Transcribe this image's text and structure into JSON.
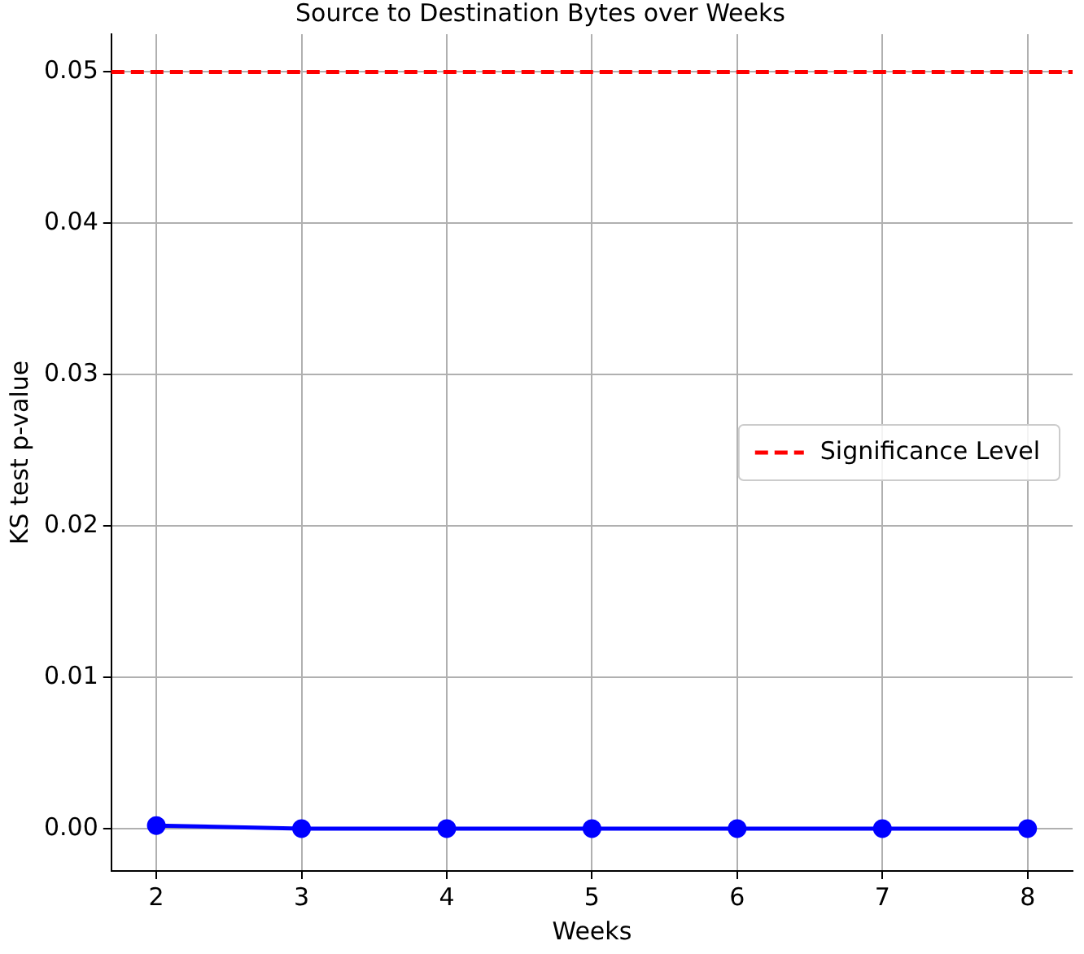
{
  "chart_data": {
    "type": "line",
    "title": "Source to Destination Bytes over Weeks",
    "xlabel": "Weeks",
    "ylabel": "KS test p-value",
    "x": [
      2,
      3,
      4,
      5,
      6,
      7,
      8
    ],
    "series": [
      {
        "color": "#0000ff",
        "values": [
          0.0002,
          0,
          0,
          0,
          0,
          0,
          0
        ]
      }
    ],
    "xlim": [
      1.69,
      8.31
    ],
    "xticks": [
      2,
      3,
      4,
      5,
      6,
      7,
      8
    ],
    "ylim": [
      -0.0028,
      0.0525
    ],
    "yticks": [
      {
        "value": 0,
        "label": "0.00"
      },
      {
        "value": 0.01,
        "label": "0.01"
      },
      {
        "value": 0.02,
        "label": "0.02"
      },
      {
        "value": 0.03,
        "label": "0.03"
      },
      {
        "value": 0.04,
        "label": "0.04"
      },
      {
        "value": 0.05,
        "label": "0.05"
      }
    ],
    "ref_lines": [
      {
        "axis": "y",
        "value": 0.05,
        "label": "Significance Level",
        "color": "#ff0000",
        "line_style": "dashed"
      }
    ],
    "grid": true,
    "legend": "right",
    "marker": "circle",
    "line_style": "solid"
  }
}
